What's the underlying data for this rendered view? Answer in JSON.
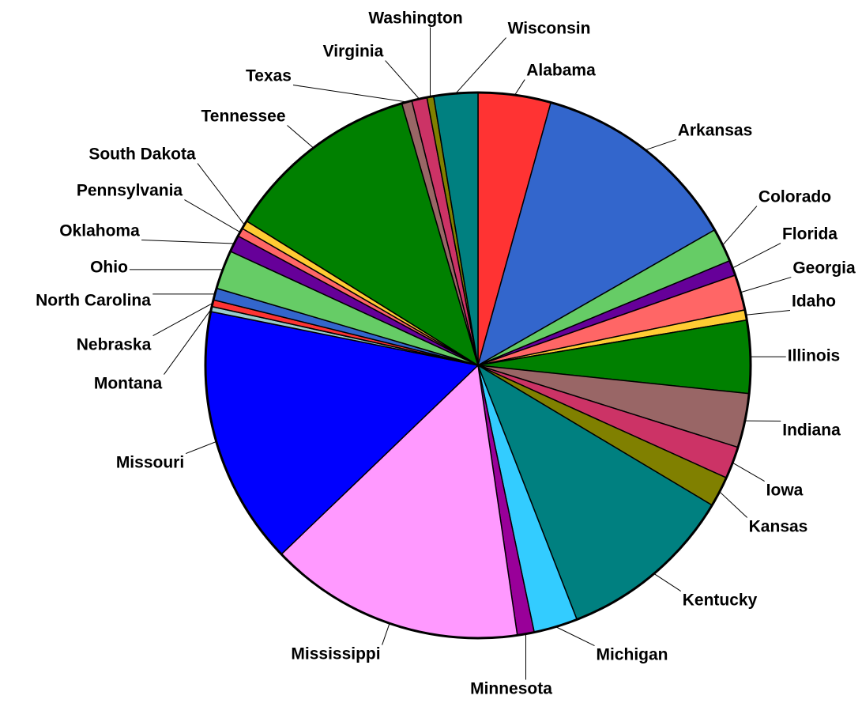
{
  "chart_data": {
    "type": "pie",
    "categories": [
      "Alabama",
      "Arkansas",
      "Colorado",
      "Florida",
      "Georgia",
      "Idaho",
      "Illinois",
      "Indiana",
      "Iowa",
      "Kansas",
      "Kentucky",
      "Michigan",
      "Minnesota",
      "Mississippi",
      "Missouri",
      "Montana",
      "Nebraska",
      "North Carolina",
      "Ohio",
      "Oklahoma",
      "Pennsylvania",
      "South Dakota",
      "Tennessee",
      "Texas",
      "Virginia",
      "Washington",
      "Wisconsin"
    ],
    "values": [
      4.3,
      12.4,
      2.0,
      0.9,
      2.1,
      0.6,
      4.3,
      3.2,
      1.9,
      1.8,
      10.5,
      2.6,
      1.0,
      15.1,
      15.3,
      0.3,
      0.4,
      0.7,
      2.3,
      1.0,
      0.5,
      0.5,
      11.6,
      0.6,
      0.9,
      0.4,
      2.6
    ],
    "colors": [
      "#ff3333",
      "#3366cc",
      "#66cc66",
      "#660099",
      "#ff6666",
      "#ffcc33",
      "#008000",
      "#996666",
      "#cc3366",
      "#808000",
      "#008080",
      "#33ccff",
      "#990099",
      "#ff99ff",
      "#0000ff",
      "#99cccc",
      "#ff3333",
      "#3366cc",
      "#66cc66",
      "#660099",
      "#ff6666",
      "#ffcc33",
      "#008000",
      "#996666",
      "#cc3366",
      "#808000",
      "#008080"
    ]
  }
}
